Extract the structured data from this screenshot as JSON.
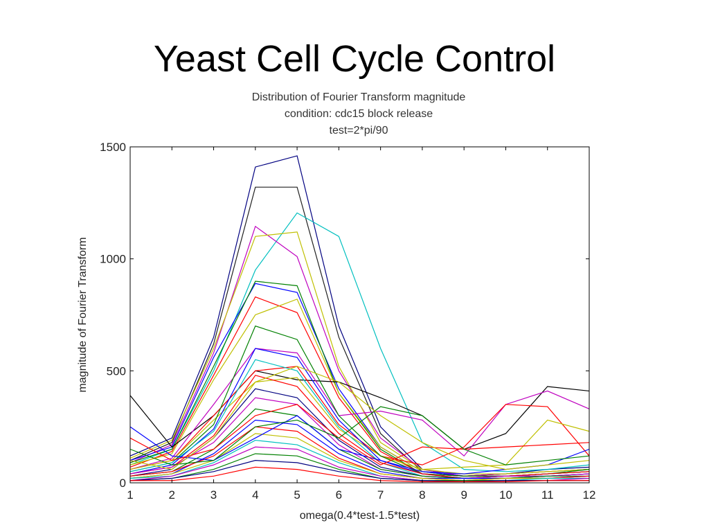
{
  "slide": {
    "title": "Yeast Cell Cycle Control"
  },
  "chart_data": {
    "type": "line",
    "title": [
      "Distribution of Fourier Transform magnitude",
      "condition: cdc15 block release",
      "test=2*pi/90"
    ],
    "xlabel": "omega(0.4*test-1.5*test)",
    "ylabel": "magnitude of Fourier Transform",
    "xlim": [
      1,
      12
    ],
    "ylim": [
      0,
      1500
    ],
    "xticks": [
      1,
      2,
      3,
      4,
      5,
      6,
      7,
      8,
      9,
      10,
      11,
      12
    ],
    "yticks": [
      0,
      500,
      1000,
      1500
    ],
    "grid": false,
    "x": [
      1,
      2,
      3,
      4,
      5,
      6,
      7,
      8,
      9,
      10,
      11,
      12
    ],
    "series_count_note": "hundreds of overlapping gene profiles; representative profiles below",
    "series": [
      {
        "color": "#000080",
        "values": [
          120,
          200,
          650,
          1410,
          1460,
          700,
          250,
          60,
          30,
          40,
          60,
          70
        ]
      },
      {
        "color": "#202020",
        "values": [
          100,
          180,
          620,
          1320,
          1320,
          650,
          220,
          50,
          30,
          40,
          50,
          60
        ]
      },
      {
        "color": "#00bfbf",
        "values": [
          80,
          150,
          500,
          950,
          1205,
          1100,
          600,
          180,
          60,
          50,
          60,
          80
        ]
      },
      {
        "color": "#bf00bf",
        "values": [
          90,
          170,
          580,
          1145,
          1010,
          500,
          200,
          60,
          30,
          40,
          50,
          60
        ]
      },
      {
        "color": "#bfbf00",
        "values": [
          110,
          190,
          600,
          1100,
          1120,
          520,
          180,
          60,
          40,
          40,
          50,
          60
        ]
      },
      {
        "color": "#0000ff",
        "values": [
          100,
          160,
          560,
          890,
          850,
          420,
          160,
          50,
          30,
          30,
          40,
          50
        ]
      },
      {
        "color": "#008000",
        "values": [
          90,
          150,
          520,
          900,
          880,
          400,
          150,
          40,
          30,
          30,
          40,
          50
        ]
      },
      {
        "color": "#ff0000",
        "values": [
          70,
          140,
          480,
          830,
          760,
          380,
          140,
          40,
          30,
          30,
          40,
          50
        ]
      },
      {
        "color": "#bfbf00",
        "values": [
          80,
          130,
          460,
          750,
          820,
          400,
          160,
          50,
          40,
          40,
          50,
          60
        ]
      },
      {
        "color": "#000000",
        "values": [
          390,
          160,
          300,
          500,
          460,
          450,
          380,
          300,
          150,
          220,
          430,
          410
        ]
      },
      {
        "color": "#bf00bf",
        "values": [
          60,
          110,
          350,
          600,
          580,
          300,
          320,
          280,
          120,
          350,
          410,
          330
        ]
      },
      {
        "color": "#ff0000",
        "values": [
          60,
          100,
          300,
          500,
          520,
          260,
          120,
          80,
          160,
          350,
          340,
          120
        ]
      },
      {
        "color": "#bfbf00",
        "values": [
          60,
          100,
          280,
          450,
          470,
          240,
          120,
          60,
          70,
          80,
          280,
          230
        ]
      },
      {
        "color": "#008000",
        "values": [
          50,
          90,
          260,
          700,
          640,
          300,
          120,
          40,
          30,
          30,
          40,
          60
        ]
      },
      {
        "color": "#0000ff",
        "values": [
          40,
          80,
          240,
          600,
          560,
          280,
          100,
          40,
          20,
          30,
          30,
          40
        ]
      },
      {
        "color": "#00bfbf",
        "values": [
          50,
          90,
          230,
          550,
          500,
          250,
          90,
          30,
          20,
          30,
          40,
          50
        ]
      },
      {
        "color": "#ff0000",
        "values": [
          40,
          70,
          210,
          480,
          430,
          220,
          90,
          40,
          20,
          30,
          40,
          50
        ]
      },
      {
        "color": "#000080",
        "values": [
          30,
          60,
          200,
          420,
          380,
          190,
          70,
          30,
          20,
          20,
          30,
          40
        ]
      },
      {
        "color": "#bf00bf",
        "values": [
          40,
          70,
          180,
          380,
          350,
          170,
          60,
          30,
          20,
          30,
          30,
          40
        ]
      },
      {
        "color": "#008000",
        "values": [
          30,
          50,
          150,
          330,
          300,
          150,
          60,
          30,
          20,
          20,
          30,
          30
        ]
      },
      {
        "color": "#0000ff",
        "values": [
          20,
          40,
          130,
          280,
          260,
          130,
          50,
          20,
          20,
          20,
          20,
          30
        ]
      },
      {
        "color": "#ff0000",
        "values": [
          30,
          50,
          120,
          250,
          230,
          110,
          40,
          20,
          10,
          20,
          20,
          30
        ]
      },
      {
        "color": "#bfbf00",
        "values": [
          20,
          40,
          100,
          220,
          200,
          100,
          40,
          20,
          10,
          20,
          20,
          20
        ]
      },
      {
        "color": "#00bfbf",
        "values": [
          20,
          30,
          90,
          190,
          170,
          90,
          30,
          10,
          10,
          10,
          20,
          20
        ]
      },
      {
        "color": "#bf00bf",
        "values": [
          10,
          30,
          80,
          160,
          150,
          70,
          30,
          10,
          10,
          10,
          10,
          20
        ]
      },
      {
        "color": "#008000",
        "values": [
          10,
          20,
          60,
          130,
          120,
          60,
          20,
          10,
          10,
          10,
          10,
          10
        ]
      },
      {
        "color": "#000080",
        "values": [
          10,
          20,
          50,
          100,
          90,
          50,
          20,
          10,
          5,
          10,
          10,
          10
        ]
      },
      {
        "color": "#ff0000",
        "values": [
          10,
          10,
          30,
          70,
          60,
          30,
          10,
          5,
          5,
          5,
          10,
          10
        ]
      },
      {
        "color": "#0000ff",
        "values": [
          250,
          120,
          100,
          200,
          300,
          150,
          100,
          50,
          40,
          60,
          80,
          150
        ]
      },
      {
        "color": "#ff0000",
        "values": [
          200,
          100,
          150,
          300,
          350,
          200,
          80,
          160,
          150,
          160,
          170,
          180
        ]
      },
      {
        "color": "#008000",
        "values": [
          150,
          80,
          100,
          250,
          280,
          200,
          340,
          300,
          150,
          80,
          100,
          120
        ]
      },
      {
        "color": "#bfbf00",
        "values": [
          100,
          60,
          200,
          450,
          520,
          450,
          300,
          180,
          100,
          60,
          80,
          100
        ]
      }
    ]
  }
}
